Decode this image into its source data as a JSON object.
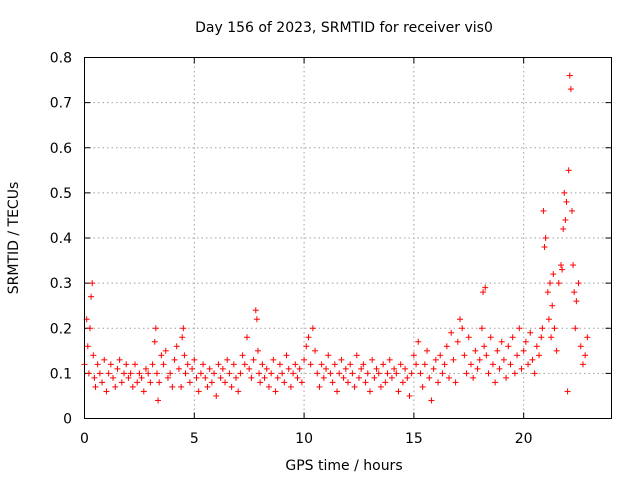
{
  "chart_data": {
    "type": "scatter",
    "title": "Day 156 of 2023, SRMTID for receiver vis0",
    "xlabel": "GPS time / hours",
    "ylabel": "SRMTID / TECUs",
    "xlim": [
      0,
      24
    ],
    "ylim": [
      0,
      0.8
    ],
    "xticks": [
      0,
      5,
      10,
      15,
      20
    ],
    "yticks": [
      0,
      0.1,
      0.2,
      0.3,
      0.4,
      0.5,
      0.6,
      0.7,
      0.8
    ],
    "xtick_labels": [
      "0",
      "5",
      "10",
      "15",
      "20"
    ],
    "ytick_labels": [
      "0",
      "0.1",
      "0.2",
      "0.3",
      "0.4",
      "0.5",
      "0.6",
      "0.7",
      "0.8"
    ],
    "grid": true,
    "marker": "plus",
    "color": "#ff0000",
    "series": [
      {
        "name": "SRMTID",
        "x": [
          0.0,
          0.1,
          0.15,
          0.2,
          0.25,
          0.3,
          0.35,
          0.4,
          0.45,
          0.5,
          0.6,
          0.7,
          0.8,
          0.9,
          1.0,
          1.1,
          1.2,
          1.3,
          1.4,
          1.5,
          1.6,
          1.7,
          1.8,
          1.9,
          2.0,
          2.1,
          2.2,
          2.3,
          2.4,
          2.5,
          2.6,
          2.7,
          2.8,
          2.9,
          3.0,
          3.1,
          3.2,
          3.25,
          3.3,
          3.35,
          3.4,
          3.5,
          3.6,
          3.7,
          3.8,
          3.9,
          4.0,
          4.1,
          4.2,
          4.3,
          4.4,
          4.45,
          4.5,
          4.55,
          4.6,
          4.7,
          4.8,
          4.9,
          5.0,
          5.1,
          5.2,
          5.3,
          5.4,
          5.5,
          5.6,
          5.7,
          5.8,
          5.9,
          6.0,
          6.1,
          6.2,
          6.3,
          6.4,
          6.5,
          6.6,
          6.7,
          6.8,
          6.9,
          7.0,
          7.1,
          7.2,
          7.3,
          7.4,
          7.5,
          7.6,
          7.7,
          7.8,
          7.85,
          7.9,
          7.95,
          8.0,
          8.1,
          8.2,
          8.3,
          8.4,
          8.5,
          8.6,
          8.7,
          8.8,
          8.9,
          9.0,
          9.1,
          9.2,
          9.3,
          9.4,
          9.5,
          9.6,
          9.7,
          9.8,
          9.9,
          10.0,
          10.1,
          10.2,
          10.3,
          10.4,
          10.5,
          10.6,
          10.7,
          10.8,
          10.9,
          11.0,
          11.1,
          11.2,
          11.3,
          11.4,
          11.5,
          11.6,
          11.7,
          11.8,
          11.9,
          12.0,
          12.1,
          12.2,
          12.3,
          12.4,
          12.5,
          12.6,
          12.7,
          12.8,
          12.9,
          13.0,
          13.1,
          13.2,
          13.3,
          13.4,
          13.5,
          13.6,
          13.7,
          13.8,
          13.9,
          14.0,
          14.1,
          14.2,
          14.3,
          14.4,
          14.5,
          14.6,
          14.7,
          14.8,
          14.9,
          15.0,
          15.1,
          15.2,
          15.3,
          15.4,
          15.5,
          15.6,
          15.7,
          15.8,
          15.9,
          16.0,
          16.1,
          16.2,
          16.3,
          16.4,
          16.5,
          16.6,
          16.7,
          16.8,
          16.9,
          17.0,
          17.1,
          17.2,
          17.3,
          17.4,
          17.5,
          17.6,
          17.7,
          17.8,
          17.9,
          18.0,
          18.1,
          18.15,
          18.2,
          18.25,
          18.3,
          18.4,
          18.5,
          18.6,
          18.7,
          18.8,
          18.9,
          19.0,
          19.1,
          19.2,
          19.3,
          19.4,
          19.5,
          19.6,
          19.7,
          19.8,
          19.9,
          20.0,
          20.1,
          20.2,
          20.3,
          20.4,
          20.5,
          20.6,
          20.7,
          20.8,
          20.85,
          20.9,
          20.95,
          21.0,
          21.1,
          21.15,
          21.2,
          21.25,
          21.3,
          21.35,
          21.4,
          21.5,
          21.6,
          21.7,
          21.75,
          21.8,
          21.85,
          21.9,
          21.95,
          22.0,
          22.05,
          22.1,
          22.15,
          22.2,
          22.25,
          22.3,
          22.35,
          22.4,
          22.5,
          22.6,
          22.7,
          22.8,
          22.9
        ],
        "y": [
          0.12,
          0.22,
          0.16,
          0.1,
          0.2,
          0.27,
          0.3,
          0.14,
          0.09,
          0.07,
          0.12,
          0.1,
          0.08,
          0.13,
          0.06,
          0.1,
          0.12,
          0.09,
          0.07,
          0.11,
          0.13,
          0.08,
          0.1,
          0.12,
          0.09,
          0.1,
          0.07,
          0.12,
          0.08,
          0.1,
          0.09,
          0.06,
          0.11,
          0.1,
          0.08,
          0.12,
          0.17,
          0.2,
          0.1,
          0.04,
          0.08,
          0.14,
          0.12,
          0.15,
          0.09,
          0.1,
          0.07,
          0.13,
          0.16,
          0.11,
          0.07,
          0.18,
          0.2,
          0.14,
          0.1,
          0.12,
          0.08,
          0.11,
          0.13,
          0.09,
          0.06,
          0.1,
          0.12,
          0.09,
          0.07,
          0.11,
          0.08,
          0.1,
          0.05,
          0.12,
          0.09,
          0.11,
          0.08,
          0.13,
          0.1,
          0.07,
          0.12,
          0.09,
          0.06,
          0.1,
          0.14,
          0.12,
          0.18,
          0.11,
          0.09,
          0.13,
          0.24,
          0.22,
          0.15,
          0.1,
          0.08,
          0.12,
          0.09,
          0.11,
          0.07,
          0.1,
          0.13,
          0.06,
          0.09,
          0.12,
          0.1,
          0.08,
          0.14,
          0.11,
          0.07,
          0.1,
          0.12,
          0.09,
          0.11,
          0.08,
          0.13,
          0.16,
          0.18,
          0.12,
          0.2,
          0.15,
          0.1,
          0.07,
          0.12,
          0.09,
          0.11,
          0.14,
          0.1,
          0.08,
          0.12,
          0.06,
          0.1,
          0.13,
          0.09,
          0.11,
          0.08,
          0.12,
          0.1,
          0.07,
          0.14,
          0.09,
          0.11,
          0.12,
          0.08,
          0.1,
          0.06,
          0.13,
          0.09,
          0.11,
          0.1,
          0.07,
          0.12,
          0.08,
          0.1,
          0.13,
          0.09,
          0.11,
          0.1,
          0.06,
          0.12,
          0.08,
          0.11,
          0.09,
          0.05,
          0.1,
          0.14,
          0.12,
          0.17,
          0.1,
          0.07,
          0.12,
          0.15,
          0.09,
          0.04,
          0.11,
          0.13,
          0.08,
          0.14,
          0.1,
          0.12,
          0.16,
          0.09,
          0.19,
          0.13,
          0.08,
          0.17,
          0.22,
          0.2,
          0.14,
          0.1,
          0.18,
          0.12,
          0.09,
          0.15,
          0.11,
          0.13,
          0.2,
          0.28,
          0.16,
          0.29,
          0.14,
          0.1,
          0.18,
          0.12,
          0.08,
          0.15,
          0.11,
          0.17,
          0.13,
          0.09,
          0.16,
          0.12,
          0.18,
          0.1,
          0.14,
          0.2,
          0.11,
          0.15,
          0.17,
          0.12,
          0.19,
          0.13,
          0.1,
          0.16,
          0.14,
          0.18,
          0.2,
          0.46,
          0.38,
          0.4,
          0.28,
          0.22,
          0.3,
          0.18,
          0.25,
          0.32,
          0.2,
          0.15,
          0.3,
          0.34,
          0.33,
          0.42,
          0.5,
          0.44,
          0.48,
          0.06,
          0.55,
          0.76,
          0.73,
          0.46,
          0.34,
          0.28,
          0.2,
          0.26,
          0.3,
          0.16,
          0.12,
          0.14,
          0.18
        ]
      }
    ]
  }
}
